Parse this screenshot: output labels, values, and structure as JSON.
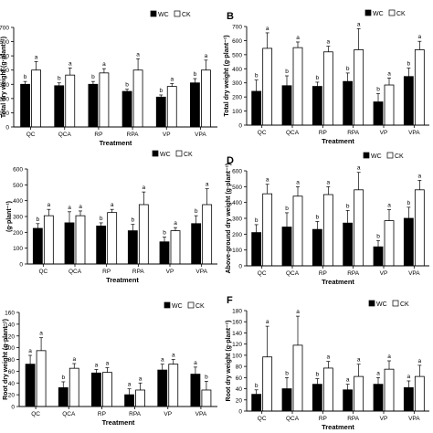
{
  "colors": {
    "wc": "#000000",
    "ck": "#ffffff",
    "axis": "#000000"
  },
  "legend": [
    "WC",
    "CK"
  ],
  "chart_data": [
    {
      "panel_label": "",
      "type": "bar",
      "categories": [
        "QC",
        "QCA",
        "RP",
        "RPA",
        "VP",
        "VPA"
      ],
      "xlabel": "Treatment",
      "ylabel": "Total dry weight (g·plant⁻¹)",
      "ylim": [
        0,
        700
      ],
      "yticks": [
        0,
        100,
        200,
        300,
        400,
        500,
        600,
        700
      ],
      "series": [
        {
          "name": "WC",
          "values": [
            300,
            290,
            300,
            250,
            210,
            310
          ],
          "errors": [
            20,
            20,
            20,
            15,
            15,
            30
          ],
          "letters": [
            "b",
            "b",
            "b",
            "b",
            "b",
            "b"
          ]
        },
        {
          "name": "CK",
          "values": [
            400,
            365,
            380,
            400,
            285,
            400
          ],
          "errors": [
            60,
            50,
            30,
            80,
            20,
            70
          ],
          "letters": [
            "a",
            "a",
            "a",
            "a",
            "a",
            "a"
          ]
        }
      ]
    },
    {
      "panel_label": "B",
      "type": "bar",
      "categories": [
        "QC",
        "QCA",
        "RP",
        "RPA",
        "VP",
        "VPA"
      ],
      "xlabel": "Treatment",
      "ylabel": "Total dry weight (g·plant⁻¹)",
      "ylim": [
        0,
        700
      ],
      "yticks": [
        0,
        100,
        200,
        300,
        400,
        500,
        600,
        700
      ],
      "series": [
        {
          "name": "WC",
          "values": [
            240,
            280,
            275,
            310,
            165,
            345
          ],
          "errors": [
            80,
            70,
            30,
            60,
            60,
            60
          ],
          "letters": [
            "b",
            "b",
            "b",
            "b",
            "b",
            "b"
          ]
        },
        {
          "name": "CK",
          "values": [
            545,
            550,
            520,
            535,
            285,
            535
          ],
          "errors": [
            110,
            40,
            40,
            150,
            50,
            60
          ],
          "letters": [
            "a",
            "a",
            "a",
            "a",
            "a",
            "a"
          ]
        }
      ]
    },
    {
      "panel_label": "",
      "type": "bar",
      "categories": [
        "QC",
        "QCA",
        "RP",
        "RPA",
        "VP",
        "VPA"
      ],
      "xlabel": "Treatment",
      "ylabel": "(g·plant⁻¹)",
      "ylim": [
        0,
        600
      ],
      "yticks": [
        0,
        100,
        200,
        300,
        400,
        500,
        600
      ],
      "series": [
        {
          "name": "WC",
          "values": [
            225,
            260,
            240,
            210,
            140,
            255
          ],
          "errors": [
            30,
            70,
            20,
            40,
            30,
            50
          ],
          "letters": [
            "b",
            "a",
            "b",
            "b",
            "b",
            "b"
          ]
        },
        {
          "name": "CK",
          "values": [
            305,
            305,
            325,
            375,
            210,
            375
          ],
          "errors": [
            40,
            30,
            20,
            80,
            20,
            100
          ],
          "letters": [
            "a",
            "a",
            "a",
            "a",
            "a",
            "a"
          ]
        }
      ]
    },
    {
      "panel_label": "D",
      "type": "bar",
      "categories": [
        "QC",
        "QCA",
        "RP",
        "RPA",
        "VP",
        "VPA"
      ],
      "xlabel": "Treatment",
      "ylabel": "Above-ground dry weight (g·plant⁻¹)",
      "ylim": [
        0,
        600
      ],
      "yticks": [
        0,
        100,
        200,
        300,
        400,
        500,
        600
      ],
      "series": [
        {
          "name": "WC",
          "values": [
            210,
            245,
            230,
            270,
            120,
            300
          ],
          "errors": [
            50,
            90,
            50,
            80,
            40,
            70
          ],
          "letters": [
            "b",
            "b",
            "b",
            "b",
            "b",
            "b"
          ]
        },
        {
          "name": "CK",
          "values": [
            455,
            440,
            450,
            480,
            285,
            480
          ],
          "errors": [
            60,
            60,
            50,
            110,
            70,
            60
          ],
          "letters": [
            "a",
            "a",
            "a",
            "a",
            "a",
            "a"
          ]
        }
      ]
    },
    {
      "panel_label": "",
      "type": "bar",
      "categories": [
        "QC",
        "QCA",
        "RP",
        "RPA",
        "VP",
        "VPA"
      ],
      "xlabel": "Treatment",
      "ylabel": "Root dry weight (g·plant⁻¹)",
      "ylim": [
        0,
        160
      ],
      "yticks": [
        0,
        20,
        40,
        60,
        80,
        100,
        120,
        140,
        160
      ],
      "series": [
        {
          "name": "WC",
          "values": [
            72,
            32,
            57,
            20,
            62,
            55
          ],
          "errors": [
            15,
            10,
            6,
            10,
            10,
            12
          ],
          "letters": [
            "a",
            "b",
            "a",
            "a",
            "a",
            "a"
          ]
        },
        {
          "name": "CK",
          "values": [
            95,
            65,
            58,
            28,
            72,
            28
          ],
          "errors": [
            22,
            8,
            8,
            12,
            8,
            15
          ],
          "letters": [
            "a",
            "a",
            "a",
            "a",
            "a",
            "b"
          ]
        }
      ]
    },
    {
      "panel_label": "F",
      "type": "bar",
      "categories": [
        "QC",
        "QCA",
        "RP",
        "RPA",
        "VP",
        "VPA"
      ],
      "xlabel": "Treatment",
      "ylabel": "Root dry weight (g·plant⁻¹)",
      "ylim": [
        0,
        180
      ],
      "yticks": [
        0,
        20,
        40,
        60,
        80,
        100,
        120,
        140,
        160,
        180
      ],
      "series": [
        {
          "name": "WC",
          "values": [
            30,
            40,
            48,
            38,
            48,
            42
          ],
          "errors": [
            8,
            20,
            10,
            10,
            12,
            12
          ],
          "letters": [
            "b",
            "b",
            "b",
            "a",
            "a",
            "a"
          ]
        },
        {
          "name": "CK",
          "values": [
            97,
            118,
            77,
            62,
            75,
            62
          ],
          "errors": [
            55,
            52,
            12,
            22,
            15,
            20
          ],
          "letters": [
            "a",
            "a",
            "a",
            "a",
            "a",
            "a"
          ]
        }
      ]
    }
  ]
}
